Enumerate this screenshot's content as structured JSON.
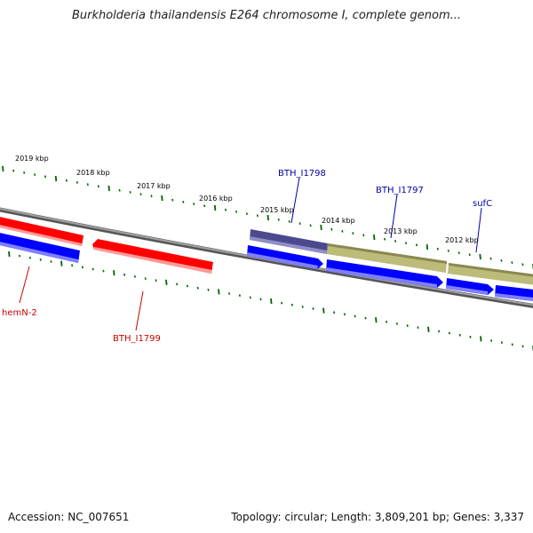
{
  "title": "Burkholderia thailandensis E264 chromosome I, complete genom...",
  "footer": {
    "accession": "Accession: NC_007651",
    "summary": "Topology: circular; Length: 3,809,201 bp; Genes: 3,337"
  },
  "map": {
    "kbp_labels": [
      "2019 kbp",
      "2018 kbp",
      "2017 kbp",
      "2016 kbp",
      "2015 kbp",
      "2014 kbp",
      "2013 kbp",
      "2012 kbp"
    ],
    "gene_labels": [
      {
        "name": "hemN-2",
        "color": "#cc0000"
      },
      {
        "name": "BTH_I1799",
        "color": "#cc0000"
      },
      {
        "name": "BTH_I1798",
        "color": "#0000aa"
      },
      {
        "name": "BTH_I1797",
        "color": "#0000aa"
      },
      {
        "name": "sufC",
        "color": "#0000aa"
      }
    ],
    "colors": {
      "backbone": "#808080",
      "tick": "#006600",
      "reverse_gene": "#ff0000",
      "forward_cds": "#0000ff",
      "purple_gene": "#4b4a8e",
      "olive_gene": "#bdbb79"
    }
  }
}
